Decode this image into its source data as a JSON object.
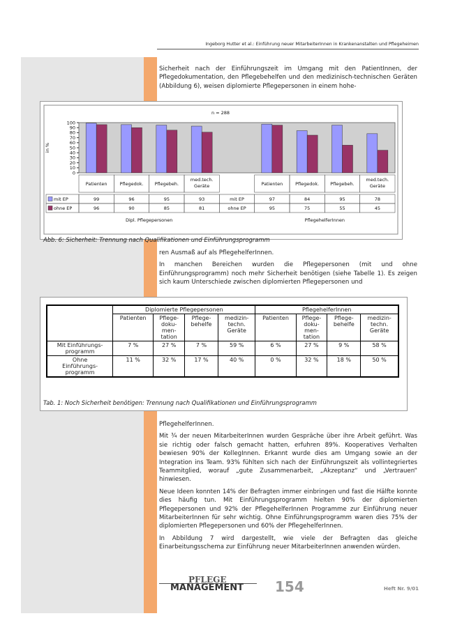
{
  "header": {
    "running_title": "Ingeborg Hutter et al.: Einführung neuer MitarbeiterInnen in Krankenanstalten und Pflegeheimen"
  },
  "paragraphs_top": [
    "Sicherheit nach der Einführungszeit im Umgang mit den PatientInnen, der Pflegedokumentation, den Pflegebehelfen und den medizinisch-technischen Geräten (Abbildung 6), weisen diplomierte Pflegepersonen in einem hohe-"
  ],
  "chart_data": {
    "type": "bar",
    "title": "n = 288",
    "y_label": "in %",
    "categories": [
      "Patienten",
      "Pflegedok.",
      "Pflegebeh.",
      "med.tech. Geräte",
      "Patienten",
      "Pflegedok.",
      "Pflegebeh.",
      "med.tech. Geräte"
    ],
    "groups": [
      "Dipl. Pflegepersonen",
      "PflegehelferInnen"
    ],
    "series": [
      {
        "name": "mit EP",
        "color": "#9999ff",
        "values": [
          99,
          96,
          95,
          93,
          97,
          84,
          95,
          78
        ]
      },
      {
        "name": "ohne EP",
        "color": "#993366",
        "values": [
          96,
          90,
          85,
          81,
          95,
          75,
          55,
          45
        ]
      }
    ],
    "ylim": [
      0,
      100
    ],
    "yticks": [
      0,
      10,
      20,
      30,
      40,
      50,
      60,
      70,
      80,
      90,
      100
    ]
  },
  "figure_caption": "Abb. 6: Sicherheit: Trennung nach Qualifikationen und Einführungsprogramm",
  "paragraphs_middle": [
    "ren Ausmaß auf als PflegehelferInnen.",
    "In manchen Bereichen wurden die Pflegepersonen (mit und ohne Einführungsprogramm) noch mehr Sicherheit benötigen (siehe Tabelle 1). Es zeigen sich kaum Unterschiede zwischen diplomierten Pflegepersonen und"
  ],
  "table": {
    "groups": [
      "Diplomierte Pflegepersonen",
      "PflegehelferInnen"
    ],
    "columns": [
      "Patienten",
      "Pflege-\ndoku-\nmen-\ntation",
      "Pflege-\nbehelfe",
      "medizin-\ntechn.\nGeräte",
      "Patienten",
      "Pflege-\ndoku-\nmen-\ntation",
      "Pflege-\nbehelfe",
      "medizin-\ntechn.\nGeräte"
    ],
    "rows": [
      [
        "Mit Einführungs-\nprogramm",
        "7 %",
        "27 %",
        "7 %",
        "59 %",
        "6 %",
        "27 %",
        "9 %",
        "58 %"
      ],
      [
        "Ohne\nEinführungs-\nprogramm",
        "11 %",
        "32 %",
        "17 %",
        "40 %",
        "0 %",
        "32 %",
        "18 %",
        "50 %"
      ]
    ]
  },
  "table_caption": "Tab. 1: Noch Sicherheit benötigen: Trennung nach Qualifikationen und Einführungsprogramm",
  "paragraphs_bottom": [
    "PflegehelferInnen.",
    "Mit ¾ der neuen MitarbeiterInnen wurden Gespräche über ihre Arbeit geführt. Was sie richtig oder falsch gemacht hatten, erfuhren 89%. Kooperatives Verhalten bewiesen 90% der KollegInnen. Erkannt wurde dies am Umgang sowie an der Integration ins Team. 93% fühlten sich nach der Einführungszeit als vollintegriertes Teammitglied, worauf „gute Zusammenarbeit, „Akzeptanz“ und „Vertrauen“ hinwiesen.",
    "Neue Ideen konnten 14% der Befragten immer einbringen und fast die Hälfte konnte dies häufig tun. Mit Einführungsprogramm hielten 90% der diplomierten Pflegepersonen und 92% der PflegehelferInnen Programme zur Einführung neuer MitarbeiterInnen für sehr wichtig. Ohne Einführungsprogramm waren dies 75% der diplomierten Pflegepersonen und 60% der PflegehelferInnen.",
    "In Abbildung 7 wird dargestellt, wie viele der Befragten das gleiche Einarbeitungsschema zur Einführung neuer MitarbeiterInnen anwenden würden."
  ],
  "footer": {
    "logo_top": "PFLEGE",
    "logo_bottom": "MANAGEMENT",
    "page_number": "154",
    "issue": "Heft Nr. 9/01"
  }
}
